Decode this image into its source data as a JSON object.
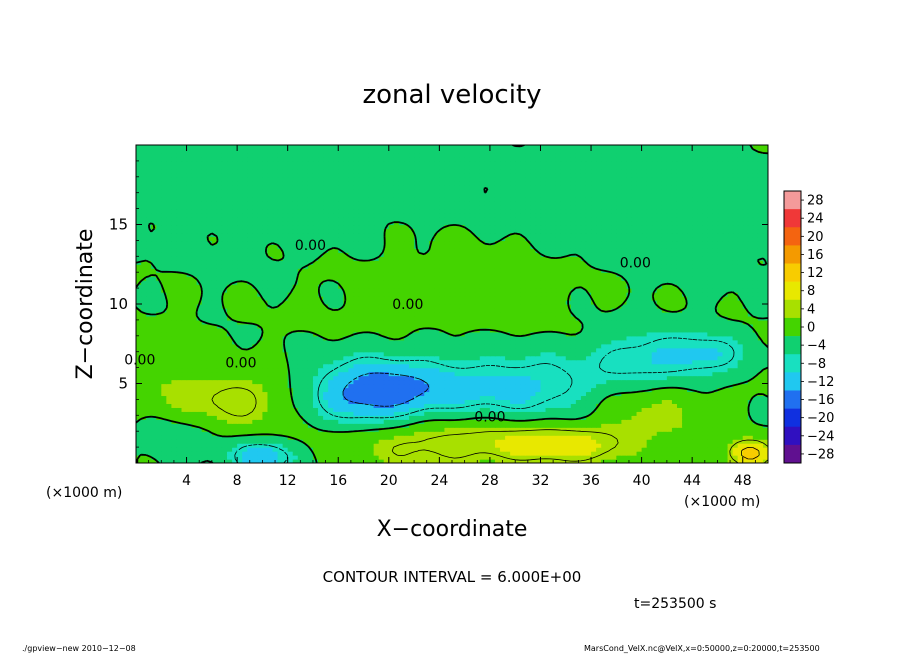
{
  "chart_data": {
    "type": "heatmap",
    "title": "zonal velocity",
    "xlabel": "X−coordinate",
    "ylabel": "Z−coordinate",
    "x_unit_left": "(×1000 m)",
    "x_unit_right": "(×1000 m)",
    "xlim": [
      0,
      50
    ],
    "ylim": [
      0,
      20
    ],
    "x_ticks": [
      4,
      8,
      12,
      16,
      20,
      24,
      28,
      32,
      36,
      40,
      44,
      48
    ],
    "y_ticks": [
      5,
      10,
      15
    ],
    "colorbar": {
      "labels": [
        28,
        24,
        20,
        16,
        12,
        8,
        4,
        0,
        -4,
        -8,
        -12,
        -16,
        -20,
        -24,
        -28
      ],
      "colors": [
        "#f49a9a",
        "#f03838",
        "#f46410",
        "#f49a00",
        "#f8cc00",
        "#e8e800",
        "#a8e000",
        "#44d400",
        "#10d070",
        "#18e0c0",
        "#20c8f0",
        "#2070f0",
        "#1030e0",
        "#3010c0",
        "#601090"
      ]
    },
    "contour_labels": [
      {
        "text": "0.00",
        "x": 28,
        "y": 2.6
      },
      {
        "text": "0.00",
        "x": 21.5,
        "y": 9.7
      },
      {
        "text": "0.00",
        "x": 39.5,
        "y": 12.3
      },
      {
        "text": "0.00",
        "x": 8.3,
        "y": 6.0
      },
      {
        "text": "0.00",
        "x": 13.8,
        "y": 13.4
      },
      {
        "text": "0.00",
        "x": 0.3,
        "y": 6.2
      }
    ],
    "field_features": [
      {
        "x": 18,
        "z": 4.4,
        "sx": 3.2,
        "sz": 1.5,
        "u": -13
      },
      {
        "x": 23,
        "z": 4.5,
        "sx": 3.5,
        "sz": 1.6,
        "u": -8
      },
      {
        "x": 31,
        "z": 4.8,
        "sx": 4.0,
        "sz": 1.5,
        "u": -9
      },
      {
        "x": 40.5,
        "z": 6.5,
        "sx": 3.0,
        "sz": 1.3,
        "u": -9
      },
      {
        "x": 45.5,
        "z": 6.8,
        "sx": 2.0,
        "sz": 1.0,
        "u": -7
      },
      {
        "x": 10,
        "z": 0.4,
        "sx": 1.8,
        "sz": 0.7,
        "u": -12
      },
      {
        "x": 3,
        "z": 1.5,
        "sx": 2.0,
        "sz": 1.0,
        "u": -4
      },
      {
        "x": 8,
        "z": 4.0,
        "sx": 3.0,
        "sz": 1.2,
        "u": 7
      },
      {
        "x": 23,
        "z": 1.5,
        "sx": 5.0,
        "sz": 1.3,
        "u": 8
      },
      {
        "x": 33.5,
        "z": 1.2,
        "sx": 4.0,
        "sz": 0.9,
        "u": 10
      },
      {
        "x": 41,
        "z": 3.5,
        "sx": 3.0,
        "sz": 1.5,
        "u": 5
      },
      {
        "x": 48.5,
        "z": 0.6,
        "sx": 1.2,
        "sz": 0.6,
        "u": 14
      },
      {
        "x": 2,
        "z": 5.5,
        "sx": 2.5,
        "sz": 2.0,
        "u": 3
      },
      {
        "x": 26,
        "z": 11.5,
        "sx": 8.0,
        "sz": 2.5,
        "u": 2
      },
      {
        "x": 12,
        "z": 17,
        "sx": 10.0,
        "sz": 4.0,
        "u": -2
      },
      {
        "x": 40,
        "z": 16,
        "sx": 10.0,
        "sz": 4.0,
        "u": -2
      }
    ],
    "contour_interval_text": "CONTOUR INTERVAL = 6.000E+00",
    "time_text": "t=253500 s",
    "grid": false,
    "legend": "right"
  },
  "footer": {
    "left": "./gpview−new  2010−12−08",
    "right": "MarsCond_VelX.nc@VelX,x=0:50000,z=0:20000,t=253500"
  }
}
